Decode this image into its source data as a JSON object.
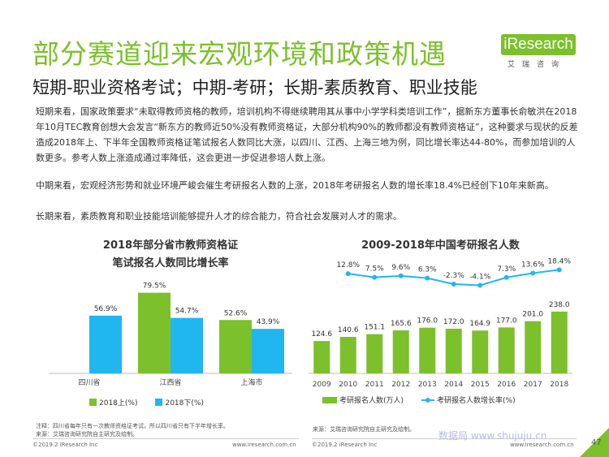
{
  "title": "部分赛道迎来宏观环境和政策机遇",
  "subtitle": "短期-职业资格考试；中期-考研；长期-素质教育、职业技能",
  "logo": {
    "text": "iResearch",
    "sub": "艾瑞咨询"
  },
  "paragraphs": {
    "p1": "短期来看，国家政策要求“未取得教师资格的教师，培训机构不得继续聘用其从事中小学学科类培训工作”，据新东方董事长俞敏洪在2018年10月TEC教育创想大会发言“新东方的教师近50%没有教师资格证，大部分机构90%的教师都没有教师资格证”，这种要求与现状的反差造成2018年上、下半年全国教师资格证笔试报名人数同比大涨，以四川、江西、上海三地为例，同比增长率达44-80%，而参加培训的人数更多。参考人数上涨造成通过率降低，这会更进一步促进参培人数上涨。",
    "p2": "中期来看，宏观经济形势和就业环境严峻会催生考研报名人数的上涨，2018年考研报名人数的增长率18.4%已经创下10年来新高。",
    "p3": "长期来看，素质教育和职业技能培训能够提升人才的综合能力，符合社会发展对人才的需求。"
  },
  "chart_data": [
    {
      "type": "bar",
      "title": "2018年部分省市教师资格证笔试报名人数同比增长率",
      "title_lines": [
        "2018年部分省市教师资格证",
        "笔试报名人数同比增长率"
      ],
      "categories": [
        "四川省",
        "江西省",
        "上海市"
      ],
      "series": [
        {
          "name": "2018上(%)",
          "values": [
            null,
            79.5,
            52.6
          ],
          "labels": [
            "",
            "79.5%",
            "52.6%"
          ],
          "color": "#7cc02b"
        },
        {
          "name": "2018下(%)",
          "values": [
            56.9,
            54.7,
            43.9
          ],
          "labels": [
            "56.9%",
            "54.7%",
            "43.9%"
          ],
          "color": "#20b6f0"
        }
      ],
      "ylim": [
        0,
        100
      ],
      "grid": false,
      "legend": "bottom",
      "note": "注释：四川省每年只有一次教师资格证考试，所以四川省只有下半年增长率。",
      "source": "来源：艾瑞咨询研究院自主研究及绘制。"
    },
    {
      "type": "bar+line",
      "title": "2009-2018年中国考研报名人数",
      "categories": [
        "2009",
        "2010",
        "2011",
        "2012",
        "2013",
        "2014",
        "2015",
        "2016",
        "2017",
        "2018"
      ],
      "series": [
        {
          "name": "考研报名人数(万人)",
          "type": "bar",
          "values": [
            124.6,
            140.6,
            151.1,
            165.6,
            176.0,
            172.0,
            164.9,
            177.0,
            201.0,
            238.0
          ],
          "labels": [
            "124.6",
            "140.6",
            "151.1",
            "165.6",
            "176.0",
            "172.0",
            "164.9",
            "177.0",
            "201.0",
            "238.0"
          ],
          "color": "#7cc02b"
        },
        {
          "name": "考研报名人数增长率(%)",
          "type": "line",
          "values": [
            null,
            12.8,
            7.5,
            9.6,
            6.3,
            -2.3,
            -4.1,
            7.3,
            13.6,
            18.4
          ],
          "labels": [
            "",
            "12.8%",
            "7.5%",
            "9.6%",
            "6.3%",
            "-2.3%",
            "-4.1%",
            "7.3%",
            "13.6%",
            "18.4%"
          ],
          "color": "#20b6f0"
        }
      ],
      "ylim": [
        0,
        250
      ],
      "y2lim": [
        -30,
        30
      ],
      "grid": false,
      "legend": "bottom",
      "source": "来源：艾瑞咨询研究院自主研究及绘制。"
    }
  ],
  "footer": {
    "left_copyright": "©2019.2 iResearch Inc",
    "left_url": "www.iresearch.com.cn",
    "right_copyright": "©2019.2 iResearch Inc",
    "right_url": "www.iresearch.com.cn",
    "page": "47",
    "watermark": "数据局 www.shujuju.cn"
  },
  "colors": {
    "accent": "#7cc02b",
    "secondary": "#20b6f0"
  }
}
